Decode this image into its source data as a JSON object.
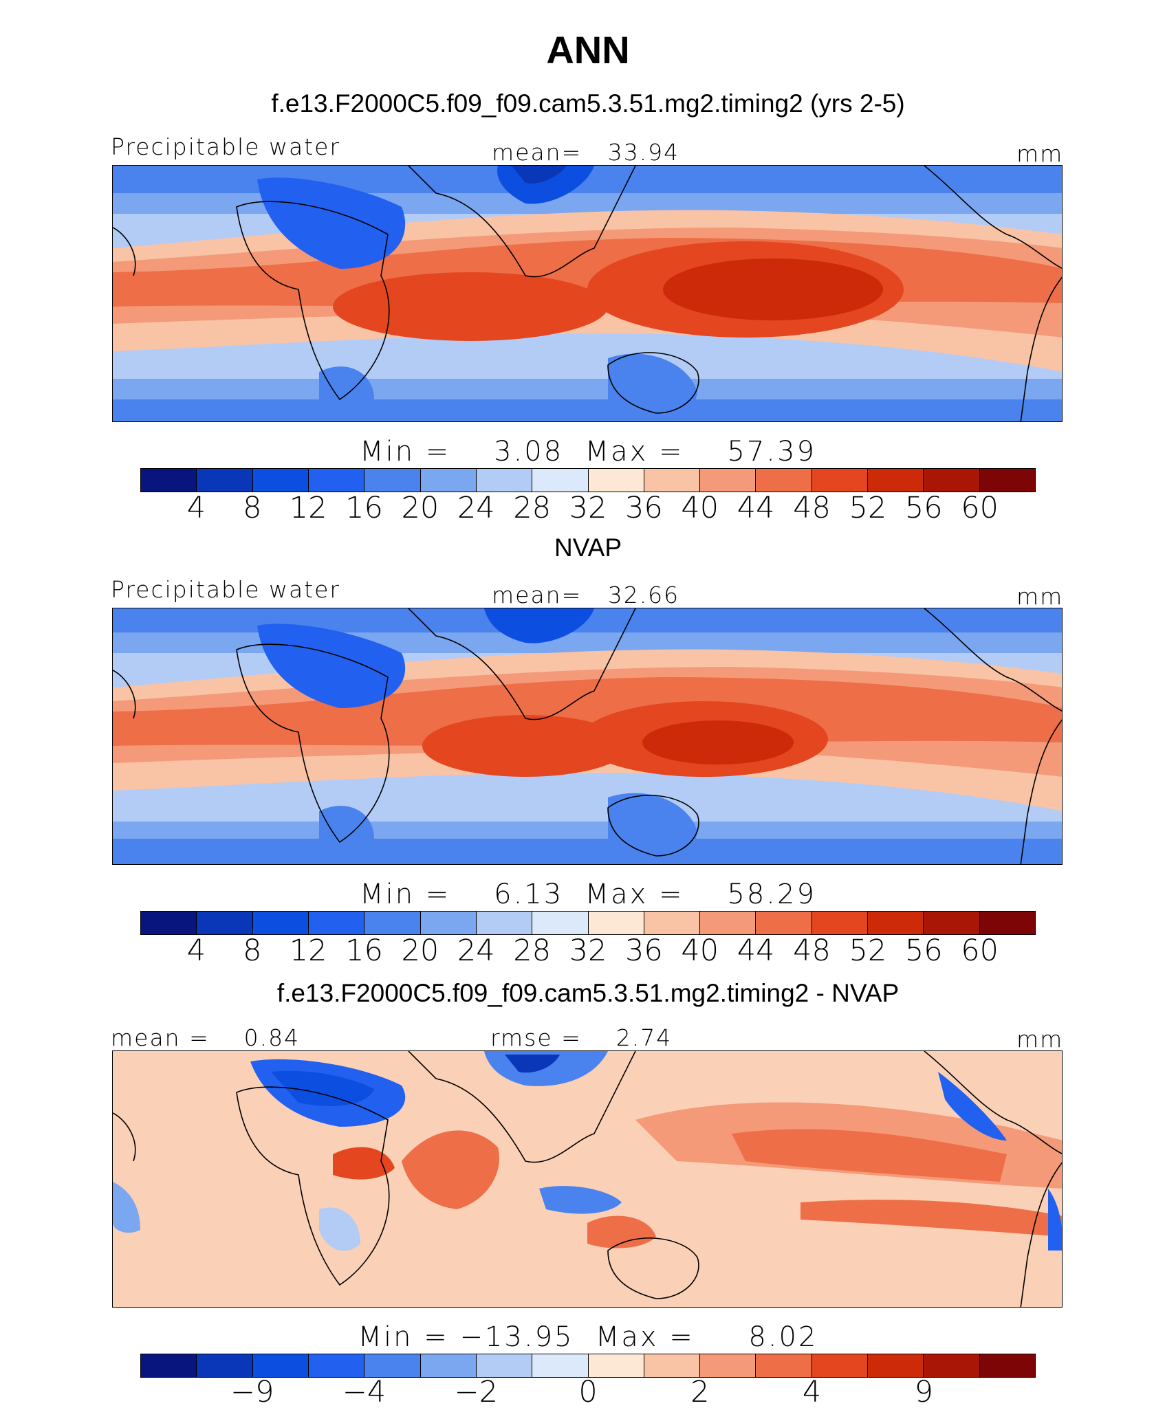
{
  "title": "ANN",
  "colors": {
    "seq": [
      "#08157f",
      "#0a36b8",
      "#0c4ee0",
      "#2260f0",
      "#4a83ee",
      "#7ba6f0",
      "#b3ccf6",
      "#dce9fb",
      "#fde8d6",
      "#f9c3a6",
      "#f49a78",
      "#ee6e47",
      "#e4461f",
      "#cc2a08",
      "#aa1606",
      "#7d0505"
    ],
    "diff": [
      "#08157f",
      "#0a36b8",
      "#0c4ee0",
      "#2260f0",
      "#4a83ee",
      "#7ba6f0",
      "#b3ccf6",
      "#dce9fb",
      "#fde8d6",
      "#f9c3a6",
      "#f49a78",
      "#ee6e47",
      "#e4461f",
      "#cc2a08",
      "#aa1606",
      "#7d0505"
    ]
  },
  "panels": [
    {
      "title": "f.e13.F2000C5.f09_f09.cam5.3.51.mg2.timing2 (yrs 2-5)",
      "left_label": "Precipitable water",
      "center_label": "mean=   33.94",
      "right_label": "mm",
      "minmax": "Min =    3.08  Max =    57.39",
      "ticks": [
        "4",
        "8",
        "12",
        "16",
        "20",
        "24",
        "28",
        "32",
        "36",
        "40",
        "44",
        "48",
        "52",
        "56",
        "60"
      ]
    },
    {
      "title": "NVAP",
      "left_label": "Precipitable water",
      "center_label": "mean=   32.66",
      "right_label": "mm",
      "minmax": "Min =    6.13  Max =    58.29",
      "ticks": [
        "4",
        "8",
        "12",
        "16",
        "20",
        "24",
        "28",
        "32",
        "36",
        "40",
        "44",
        "48",
        "52",
        "56",
        "60"
      ]
    },
    {
      "title": "f.e13.F2000C5.f09_f09.cam5.3.51.mg2.timing2 - NVAP",
      "left_label": "mean =    0.84",
      "center_label": "rmse =    2.74",
      "right_label": "mm",
      "minmax": "Min = −13.95  Max =     8.02",
      "ticks": [
        "−9",
        "−4",
        "−2",
        "0",
        "2",
        "4",
        "9"
      ]
    }
  ]
}
